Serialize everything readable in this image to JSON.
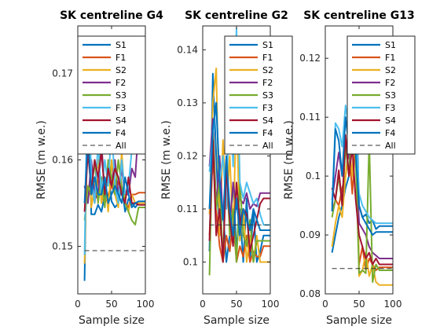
{
  "colors": {
    "S1": "#0072BD",
    "F1": "#D95319",
    "S2": "#EDB120",
    "F2": "#7E2F8E",
    "S3": "#77AC30",
    "F3": "#4DBEEE",
    "S4": "#A2142F",
    "F4": "#0072BD",
    "All": "#333333"
  },
  "legend_labels": [
    "S1",
    "F1",
    "S2",
    "F2",
    "S3",
    "F3",
    "S4",
    "F4",
    "All"
  ],
  "chart_data": [
    {
      "type": "line",
      "title": "SK centreline G4",
      "xlabel": "Sample size",
      "ylabel": "RMSE (m w.e.)",
      "xlim": [
        0,
        100
      ],
      "ylim": [
        0.1445,
        0.1755
      ],
      "xticks": [
        0,
        50,
        100
      ],
      "xtick_labels": [
        "0",
        "50",
        "100"
      ],
      "yticks": [
        0.15,
        0.16,
        0.17
      ],
      "ytick_labels": [
        "0.15",
        "0.16",
        "0.17"
      ],
      "legend_position": "top-right",
      "grid": false,
      "x": [
        10,
        15,
        20,
        25,
        30,
        35,
        40,
        45,
        50,
        55,
        60,
        65,
        70,
        75,
        80,
        85,
        90,
        95,
        100
      ],
      "series": [
        {
          "name": "S1",
          "values": [
            0.146,
            0.169,
            0.1537,
            0.1537,
            0.1548,
            0.154,
            0.156,
            0.1592,
            0.1552,
            0.1545,
            0.155,
            0.157,
            0.154,
            0.1555,
            0.155,
            0.1545,
            0.155,
            0.155,
            0.155
          ]
        },
        {
          "name": "F1",
          "values": [
            0.156,
            0.1555,
            0.157,
            0.155,
            0.158,
            0.156,
            0.155,
            0.156,
            0.157,
            0.156,
            0.1575,
            0.156,
            0.155,
            0.1545,
            0.156,
            0.156,
            0.1562,
            0.1562,
            0.1562
          ]
        },
        {
          "name": "S2",
          "values": [
            0.148,
            0.166,
            0.1545,
            0.157,
            0.16,
            0.155,
            0.158,
            0.154,
            0.16,
            0.156,
            0.1545,
            0.161,
            0.155,
            0.154,
            0.156,
            0.155,
            0.155,
            0.155,
            0.155
          ]
        },
        {
          "name": "F2",
          "values": [
            0.157,
            0.155,
            0.16,
            0.156,
            0.1555,
            0.162,
            0.156,
            0.158,
            0.157,
            0.16,
            0.156,
            0.159,
            0.156,
            0.156,
            0.159,
            0.158,
            0.1638,
            0.1638,
            0.1638
          ]
        },
        {
          "name": "S3",
          "values": [
            0.153,
            0.157,
            0.156,
            0.16,
            0.155,
            0.158,
            0.1545,
            0.16,
            0.158,
            0.156,
            0.16,
            0.157,
            0.155,
            0.154,
            0.153,
            0.1525,
            0.1545,
            0.1545,
            0.1545
          ]
        },
        {
          "name": "F3",
          "values": [
            0.149,
            0.172,
            0.158,
            0.155,
            0.162,
            0.156,
            0.16,
            0.157,
            0.164,
            0.157,
            0.155,
            0.16,
            0.156,
            0.157,
            0.1612,
            0.1612,
            0.1612,
            0.1612,
            0.1612
          ]
        },
        {
          "name": "S4",
          "values": [
            0.154,
            0.161,
            0.1565,
            0.16,
            0.158,
            0.161,
            0.156,
            0.159,
            0.157,
            0.159,
            0.158,
            0.156,
            0.155,
            0.158,
            0.155,
            0.155,
            0.1548,
            0.1548,
            0.1548
          ]
        },
        {
          "name": "F4",
          "values": [
            0.155,
            0.163,
            0.156,
            0.158,
            0.156,
            0.156,
            0.158,
            0.155,
            0.156,
            0.157,
            0.156,
            0.155,
            0.158,
            0.156,
            0.1545,
            0.155,
            0.1552,
            0.1552,
            0.1552
          ]
        },
        {
          "name": "All",
          "dashed": true,
          "values": [
            0.1495,
            0.1495,
            0.1495,
            0.1495,
            0.1495,
            0.1495,
            0.1495,
            0.1495,
            0.1495,
            0.1495,
            0.1495,
            0.1495,
            0.1495,
            0.1495,
            0.1495,
            0.1495,
            0.1495,
            0.1495,
            0.1495
          ]
        }
      ]
    },
    {
      "type": "line",
      "title": "SK centreline G2",
      "xlabel": "Sample size",
      "ylabel": "RMSE (m w.e.)",
      "xlim": [
        0,
        100
      ],
      "ylim": [
        0.094,
        0.1445
      ],
      "xticks": [
        0,
        50,
        100
      ],
      "xtick_labels": [
        "0",
        "50",
        "100"
      ],
      "yticks": [
        0.1,
        0.11,
        0.12,
        0.13,
        0.14
      ],
      "ytick_labels": [
        "0.1",
        "0.11",
        "0.12",
        "0.13",
        "0.14"
      ],
      "legend_position": "top-right",
      "grid": false,
      "x": [
        10,
        15,
        20,
        25,
        30,
        35,
        40,
        45,
        50,
        55,
        60,
        65,
        70,
        75,
        80,
        85,
        90,
        95,
        100
      ],
      "series": [
        {
          "name": "S1",
          "values": [
            0.102,
            0.1355,
            0.12,
            0.105,
            0.11,
            0.1,
            0.105,
            0.115,
            0.102,
            0.11,
            0.1,
            0.112,
            0.1,
            0.11,
            0.1,
            0.102,
            0.105,
            0.105,
            0.105
          ]
        },
        {
          "name": "F1",
          "values": [
            0.105,
            0.12,
            0.11,
            0.103,
            0.1,
            0.105,
            0.102,
            0.108,
            0.1,
            0.103,
            0.101,
            0.105,
            0.1,
            0.102,
            0.101,
            0.101,
            0.103,
            0.103,
            0.103
          ]
        },
        {
          "name": "S2",
          "values": [
            0.109,
            0.13,
            0.1365,
            0.105,
            0.123,
            0.11,
            0.12,
            0.105,
            0.13,
            0.104,
            0.11,
            0.1,
            0.105,
            0.1,
            0.105,
            0.1,
            0.1,
            0.1,
            0.1
          ]
        },
        {
          "name": "F2",
          "values": [
            0.118,
            0.127,
            0.11,
            0.12,
            0.108,
            0.115,
            0.107,
            0.115,
            0.11,
            0.112,
            0.111,
            0.113,
            0.11,
            0.111,
            0.1105,
            0.113,
            0.113,
            0.113,
            0.113
          ]
        },
        {
          "name": "S3",
          "values": [
            0.0975,
            0.125,
            0.11,
            0.115,
            0.1,
            0.12,
            0.105,
            0.11,
            0.1,
            0.115,
            0.105,
            0.103,
            0.108,
            0.1,
            0.104,
            0.104,
            0.104,
            0.104,
            0.104
          ]
        },
        {
          "name": "F3",
          "values": [
            0.117,
            0.124,
            0.13,
            0.115,
            0.12,
            0.11,
            0.135,
            0.118,
            0.144,
            0.115,
            0.112,
            0.115,
            0.113,
            0.111,
            0.112,
            0.109,
            0.107,
            0.107,
            0.107
          ]
        },
        {
          "name": "S4",
          "values": [
            0.104,
            0.123,
            0.105,
            0.11,
            0.1,
            0.118,
            0.108,
            0.103,
            0.115,
            0.107,
            0.11,
            0.109,
            0.102,
            0.105,
            0.108,
            0.111,
            0.112,
            0.112,
            0.112
          ]
        },
        {
          "name": "F4",
          "values": [
            0.11,
            0.125,
            0.13,
            0.115,
            0.108,
            0.12,
            0.11,
            0.105,
            0.112,
            0.105,
            0.11,
            0.108,
            0.106,
            0.11,
            0.108,
            0.106,
            0.106,
            0.106,
            0.106
          ]
        },
        {
          "name": "All",
          "dashed": true,
          "values": [
            0.107,
            0.107,
            0.107,
            0.107,
            0.107,
            0.107,
            0.107,
            0.107,
            0.107,
            0.107,
            0.107,
            0.107,
            0.107,
            0.107,
            0.107,
            0.107,
            0.107,
            0.107,
            0.107
          ]
        }
      ]
    },
    {
      "type": "line",
      "title": "SK centreline G13",
      "xlabel": "Sample size",
      "ylabel": "RMSE (m w.e.)",
      "xlim": [
        0,
        100
      ],
      "ylim": [
        0.08,
        0.1255
      ],
      "xticks": [
        0,
        50,
        100
      ],
      "xtick_labels": [
        "0",
        "50",
        "100"
      ],
      "yticks": [
        0.08,
        0.09,
        0.1,
        0.11,
        0.12
      ],
      "ytick_labels": [
        "0.08",
        "0.09",
        "0.1",
        "0.11",
        "0.12"
      ],
      "legend_position": "top-right",
      "grid": false,
      "x": [
        10,
        15,
        20,
        25,
        30,
        35,
        40,
        45,
        50,
        55,
        60,
        65,
        70,
        75,
        80,
        85,
        90,
        95,
        100
      ],
      "series": [
        {
          "name": "S1",
          "values": [
            0.087,
            0.09,
            0.093,
            0.095,
            0.098,
            0.1,
            0.112,
            0.116,
            0.095,
            0.093,
            0.0935,
            0.092,
            0.0925,
            0.091,
            0.0915,
            0.0915,
            0.0915,
            0.0915,
            0.0915
          ]
        },
        {
          "name": "F1",
          "values": [
            0.094,
            0.096,
            0.095,
            0.098,
            0.1,
            0.105,
            0.097,
            0.106,
            0.085,
            0.088,
            0.084,
            0.086,
            0.085,
            0.084,
            0.0845,
            0.0845,
            0.0845,
            0.0845,
            0.0845
          ]
        },
        {
          "name": "S2",
          "values": [
            0.088,
            0.092,
            0.095,
            0.093,
            0.1,
            0.105,
            0.1,
            0.115,
            0.083,
            0.084,
            0.087,
            0.083,
            0.085,
            0.082,
            0.0815,
            0.0815,
            0.0815,
            0.0815,
            0.0815
          ]
        },
        {
          "name": "F2",
          "values": [
            0.096,
            0.1,
            0.104,
            0.1,
            0.106,
            0.103,
            0.106,
            0.105,
            0.092,
            0.091,
            0.09,
            0.088,
            0.087,
            0.0865,
            0.086,
            0.086,
            0.086,
            0.086,
            0.086
          ]
        },
        {
          "name": "S3",
          "values": [
            0.093,
            0.096,
            0.1,
            0.095,
            0.105,
            0.1,
            0.11,
            0.103,
            0.0835,
            0.084,
            0.0835,
            0.106,
            0.082,
            0.085,
            0.084,
            0.084,
            0.084,
            0.084,
            0.084
          ]
        },
        {
          "name": "F3",
          "values": [
            0.095,
            0.109,
            0.108,
            0.105,
            0.112,
            0.108,
            0.115,
            0.108,
            0.097,
            0.095,
            0.094,
            0.093,
            0.0925,
            0.092,
            0.092,
            0.092,
            0.092,
            0.092,
            0.092
          ]
        },
        {
          "name": "S4",
          "values": [
            0.098,
            0.096,
            0.101,
            0.095,
            0.107,
            0.1,
            0.105,
            0.096,
            0.09,
            0.088,
            0.086,
            0.087,
            0.085,
            0.086,
            0.085,
            0.085,
            0.085,
            0.085,
            0.085
          ]
        },
        {
          "name": "F4",
          "values": [
            0.094,
            0.108,
            0.106,
            0.1,
            0.11,
            0.105,
            0.11,
            0.104,
            0.095,
            0.093,
            0.092,
            0.091,
            0.09,
            0.0905,
            0.0905,
            0.0905,
            0.0905,
            0.0905,
            0.0905
          ]
        },
        {
          "name": "All",
          "dashed": true,
          "values": [
            0.0843,
            0.0843,
            0.0843,
            0.0843,
            0.0843,
            0.0843,
            0.0843,
            0.0843,
            0.0843,
            0.0843,
            0.0843,
            0.0843,
            0.0843,
            0.0843,
            0.0843,
            0.0843,
            0.0843,
            0.0843,
            0.0843
          ]
        }
      ]
    }
  ]
}
